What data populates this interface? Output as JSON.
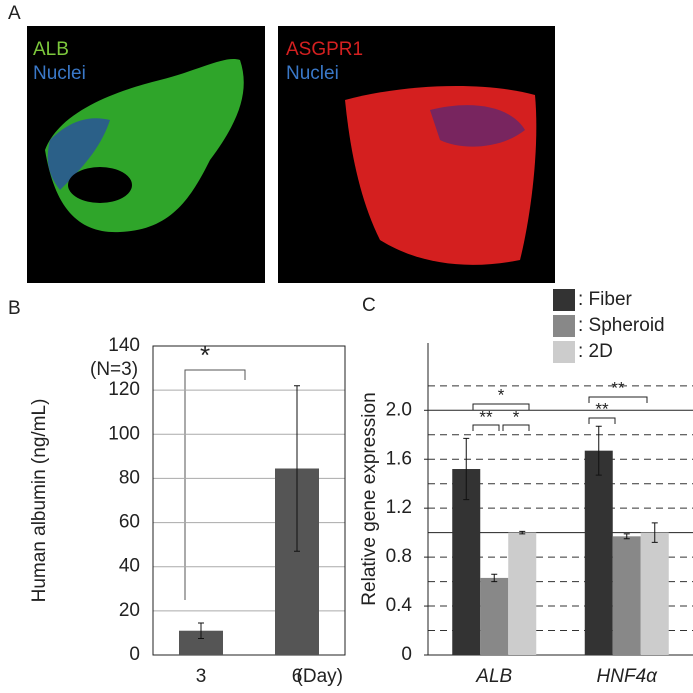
{
  "panels": [
    "A",
    "B",
    "C"
  ],
  "images": [
    {
      "labels": [
        "ALB",
        "Nuclei"
      ]
    },
    {
      "labels": [
        "ASGPR1",
        "Nuclei"
      ]
    }
  ],
  "chart_data": [
    {
      "type": "bar",
      "categories": [
        "3",
        "6"
      ],
      "values": [
        11,
        84.5
      ],
      "errors": [
        3.5,
        37.5
      ],
      "color": "#555555",
      "ylim": [
        0,
        140
      ],
      "yticks": [
        0,
        20,
        40,
        60,
        80,
        100,
        120,
        140
      ],
      "grid": true,
      "ylabel": "Human albumin (ng/mL)",
      "xlabel": "(Day)",
      "annotations": [
        "(N=3)",
        "*"
      ]
    },
    {
      "type": "bar",
      "categories": [
        "ALB",
        "HNF4α"
      ],
      "series": [
        {
          "name": ": Fiber",
          "color": "#333333",
          "values": [
            1.52,
            1.67
          ],
          "errors": [
            0.25,
            0.2
          ]
        },
        {
          "name": ": Spheroid",
          "color": "#888888",
          "values": [
            0.63,
            0.97
          ],
          "errors": [
            0.03,
            0.02
          ]
        },
        {
          "name": ": 2D",
          "color": "#cccccc",
          "values": [
            1.0,
            1.0
          ],
          "errors": [
            0.01,
            0.08
          ]
        }
      ],
      "ylim": [
        0,
        2.55
      ],
      "yticks": [
        0,
        0.4,
        0.8,
        1.2,
        1.6,
        {
          "value": 2,
          "label": "2.0"
        }
      ],
      "minor_yticks": [
        0.2,
        0.4,
        0.6,
        0.8,
        1.2,
        1.4,
        1.6,
        1.8,
        2.2
      ],
      "hlines": [
        1,
        2
      ],
      "ylabel": "Relative gene expression",
      "annotations": [
        "*",
        "**",
        "*",
        "**",
        "**"
      ]
    }
  ]
}
